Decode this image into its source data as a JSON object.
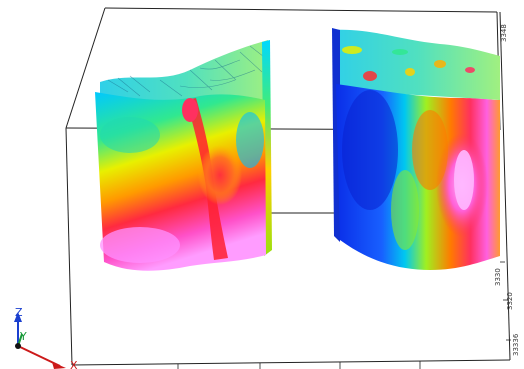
{
  "viewer": {
    "background": "#ffffff",
    "bounding_box_color": "#222222"
  },
  "axis_ticks": {
    "right_top": "3348",
    "right_mid_1": "3330",
    "right_mid_2": "3320",
    "right_bottom": "33336"
  },
  "triad": {
    "z_label": "Z",
    "y_label": "Y",
    "x_label": "X",
    "z_color": "#1a3fcf",
    "y_color": "#1a9a3a",
    "x_color": "#cc1a1a"
  },
  "colormap": [
    "#1030e0",
    "#00c0ff",
    "#00e0a0",
    "#c0f000",
    "#ffb000",
    "#ff3030",
    "#ff40c0",
    "#ff90ff"
  ]
}
